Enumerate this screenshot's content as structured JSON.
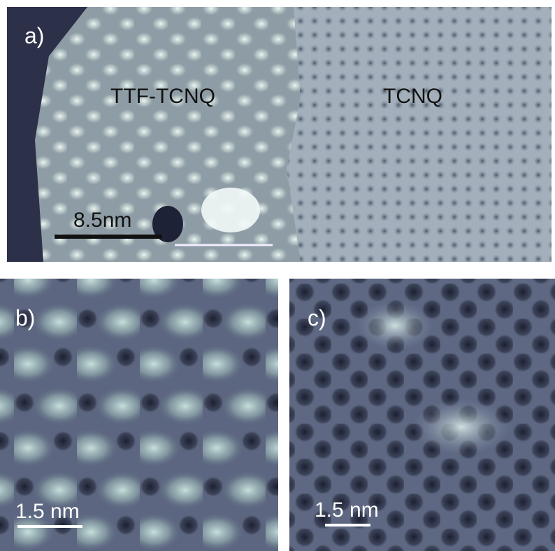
{
  "panels": [
    {
      "label": "a)",
      "annotations": [
        "TTF-TCNQ",
        "TCNQ"
      ],
      "scale_bar": "8.5nm"
    },
    {
      "label": "b)",
      "scale_bar": "1.5 nm"
    },
    {
      "label": "c)",
      "scale_bar": "1.5 nm"
    }
  ]
}
